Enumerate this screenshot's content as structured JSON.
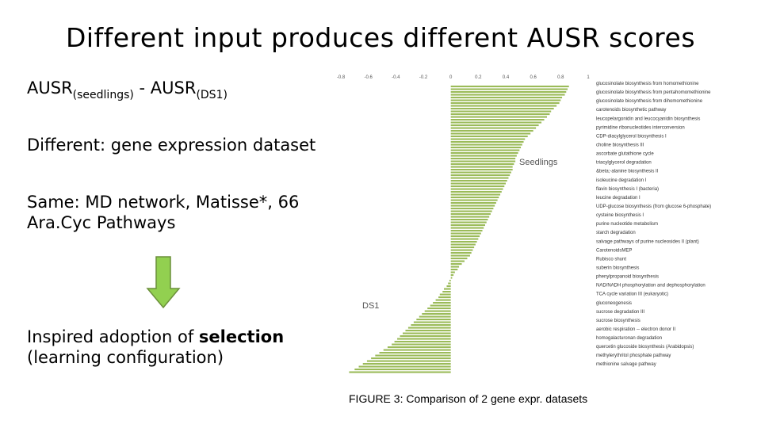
{
  "slide": {
    "title": "Different input produces different AUSR scores",
    "ausr_main_1": "AUSR",
    "ausr_sub_1": "(seedlings)",
    "ausr_minus": " - AUSR",
    "ausr_sub_2": "(DS1)",
    "different_text": "Different: gene expression dataset",
    "same_text": "Same: MD network, Matisse*, 66 Ara.Cyc Pathways",
    "inspired_prefix": "Inspired adoption of ",
    "inspired_bold": "selection",
    "inspired_suffix": " (learning configuration)",
    "caption": "FIGURE 3: Comparison of 2 gene expr. datasets",
    "arrow_color": "#92d050"
  },
  "chart_data": {
    "type": "bar",
    "orientation": "horizontal",
    "bar_color": "#9bbb59",
    "xlim": [
      -0.8,
      1
    ],
    "x_ticks": [
      "-0.8",
      "-0.6",
      "-0.4",
      "-0.2",
      "0",
      "0.2",
      "0.4",
      "0.6",
      "0.8",
      "1"
    ],
    "x_tick_values": [
      -0.8,
      -0.6,
      -0.4,
      -0.2,
      0,
      0.2,
      0.4,
      0.6,
      0.8,
      1
    ],
    "annotations": {
      "positive": "Seedlings",
      "negative": "DS1"
    },
    "category_labels": [
      "glucosinolate biosynthesis from homomethionine",
      "glucosinolate biosynthesis from pentahomomethionine",
      "glucosinolate biosynthesis from dihomomethionine",
      "carotenoids biosynthetic pathway",
      "leucopelargonidin and leucocyanidin biosynthesis",
      "pyrimidine ribonucleotides interconversion",
      "CDP-diacylglycerol biosynthesis I",
      "choline biosynthesis III",
      "ascorbate glutathione cycle",
      "triacylglycerol degradation",
      "&beta;-alanine biosynthesis II",
      "isoleucine degradation I",
      "flavin biosynthesis I (bacteria)",
      "leucine degradation I",
      "UDP-glucose biosynthesis (from glucose 6-phosphate)",
      "cysteine biosynthesis I",
      "purine nucleotide metabolism",
      "starch degradation",
      "salvage pathways of purine nucleosides II (plant)",
      "CarotenoidsMEP",
      "Rubisco shunt",
      "suberin biosynthesis",
      "phenylpropanoid biosynthesis",
      "NAD/NADH phosphorylation and dephosphorylation",
      "TCA cycle variation III (eukaryotic)",
      "gluconeogenesis",
      "sucrose degradation III",
      "sucrose biosynthesis",
      "aerobic respiration -- electron donor II",
      "homogalacturonan degradation",
      "quercetin glucoside biosynthesis (Arabidopsis)",
      "methylerythritol phosphate pathway",
      "methionine salvage pathway"
    ],
    "values": [
      0.86,
      0.85,
      0.84,
      0.83,
      0.81,
      0.8,
      0.79,
      0.77,
      0.75,
      0.73,
      0.72,
      0.7,
      0.68,
      0.66,
      0.64,
      0.62,
      0.6,
      0.58,
      0.56,
      0.54,
      0.53,
      0.52,
      0.51,
      0.5,
      0.49,
      0.48,
      0.47,
      0.47,
      0.46,
      0.45,
      0.45,
      0.44,
      0.43,
      0.42,
      0.41,
      0.4,
      0.39,
      0.38,
      0.37,
      0.36,
      0.35,
      0.34,
      0.33,
      0.32,
      0.31,
      0.3,
      0.29,
      0.28,
      0.27,
      0.26,
      0.25,
      0.24,
      0.23,
      0.22,
      0.21,
      0.2,
      0.19,
      0.18,
      0.17,
      0.16,
      0.15,
      0.14,
      0.12,
      0.1,
      0.08,
      0.06,
      0.05,
      0.03,
      0.02,
      0.01,
      -0.01,
      -0.02,
      -0.03,
      -0.05,
      -0.06,
      -0.08,
      -0.09,
      -0.11,
      -0.13,
      -0.15,
      -0.17,
      -0.19,
      -0.21,
      -0.23,
      -0.25,
      -0.27,
      -0.29,
      -0.31,
      -0.33,
      -0.35,
      -0.37,
      -0.39,
      -0.41,
      -0.43,
      -0.46,
      -0.49,
      -0.52,
      -0.55,
      -0.58,
      -0.61,
      -0.64,
      -0.67,
      -0.7,
      -0.74
    ]
  }
}
